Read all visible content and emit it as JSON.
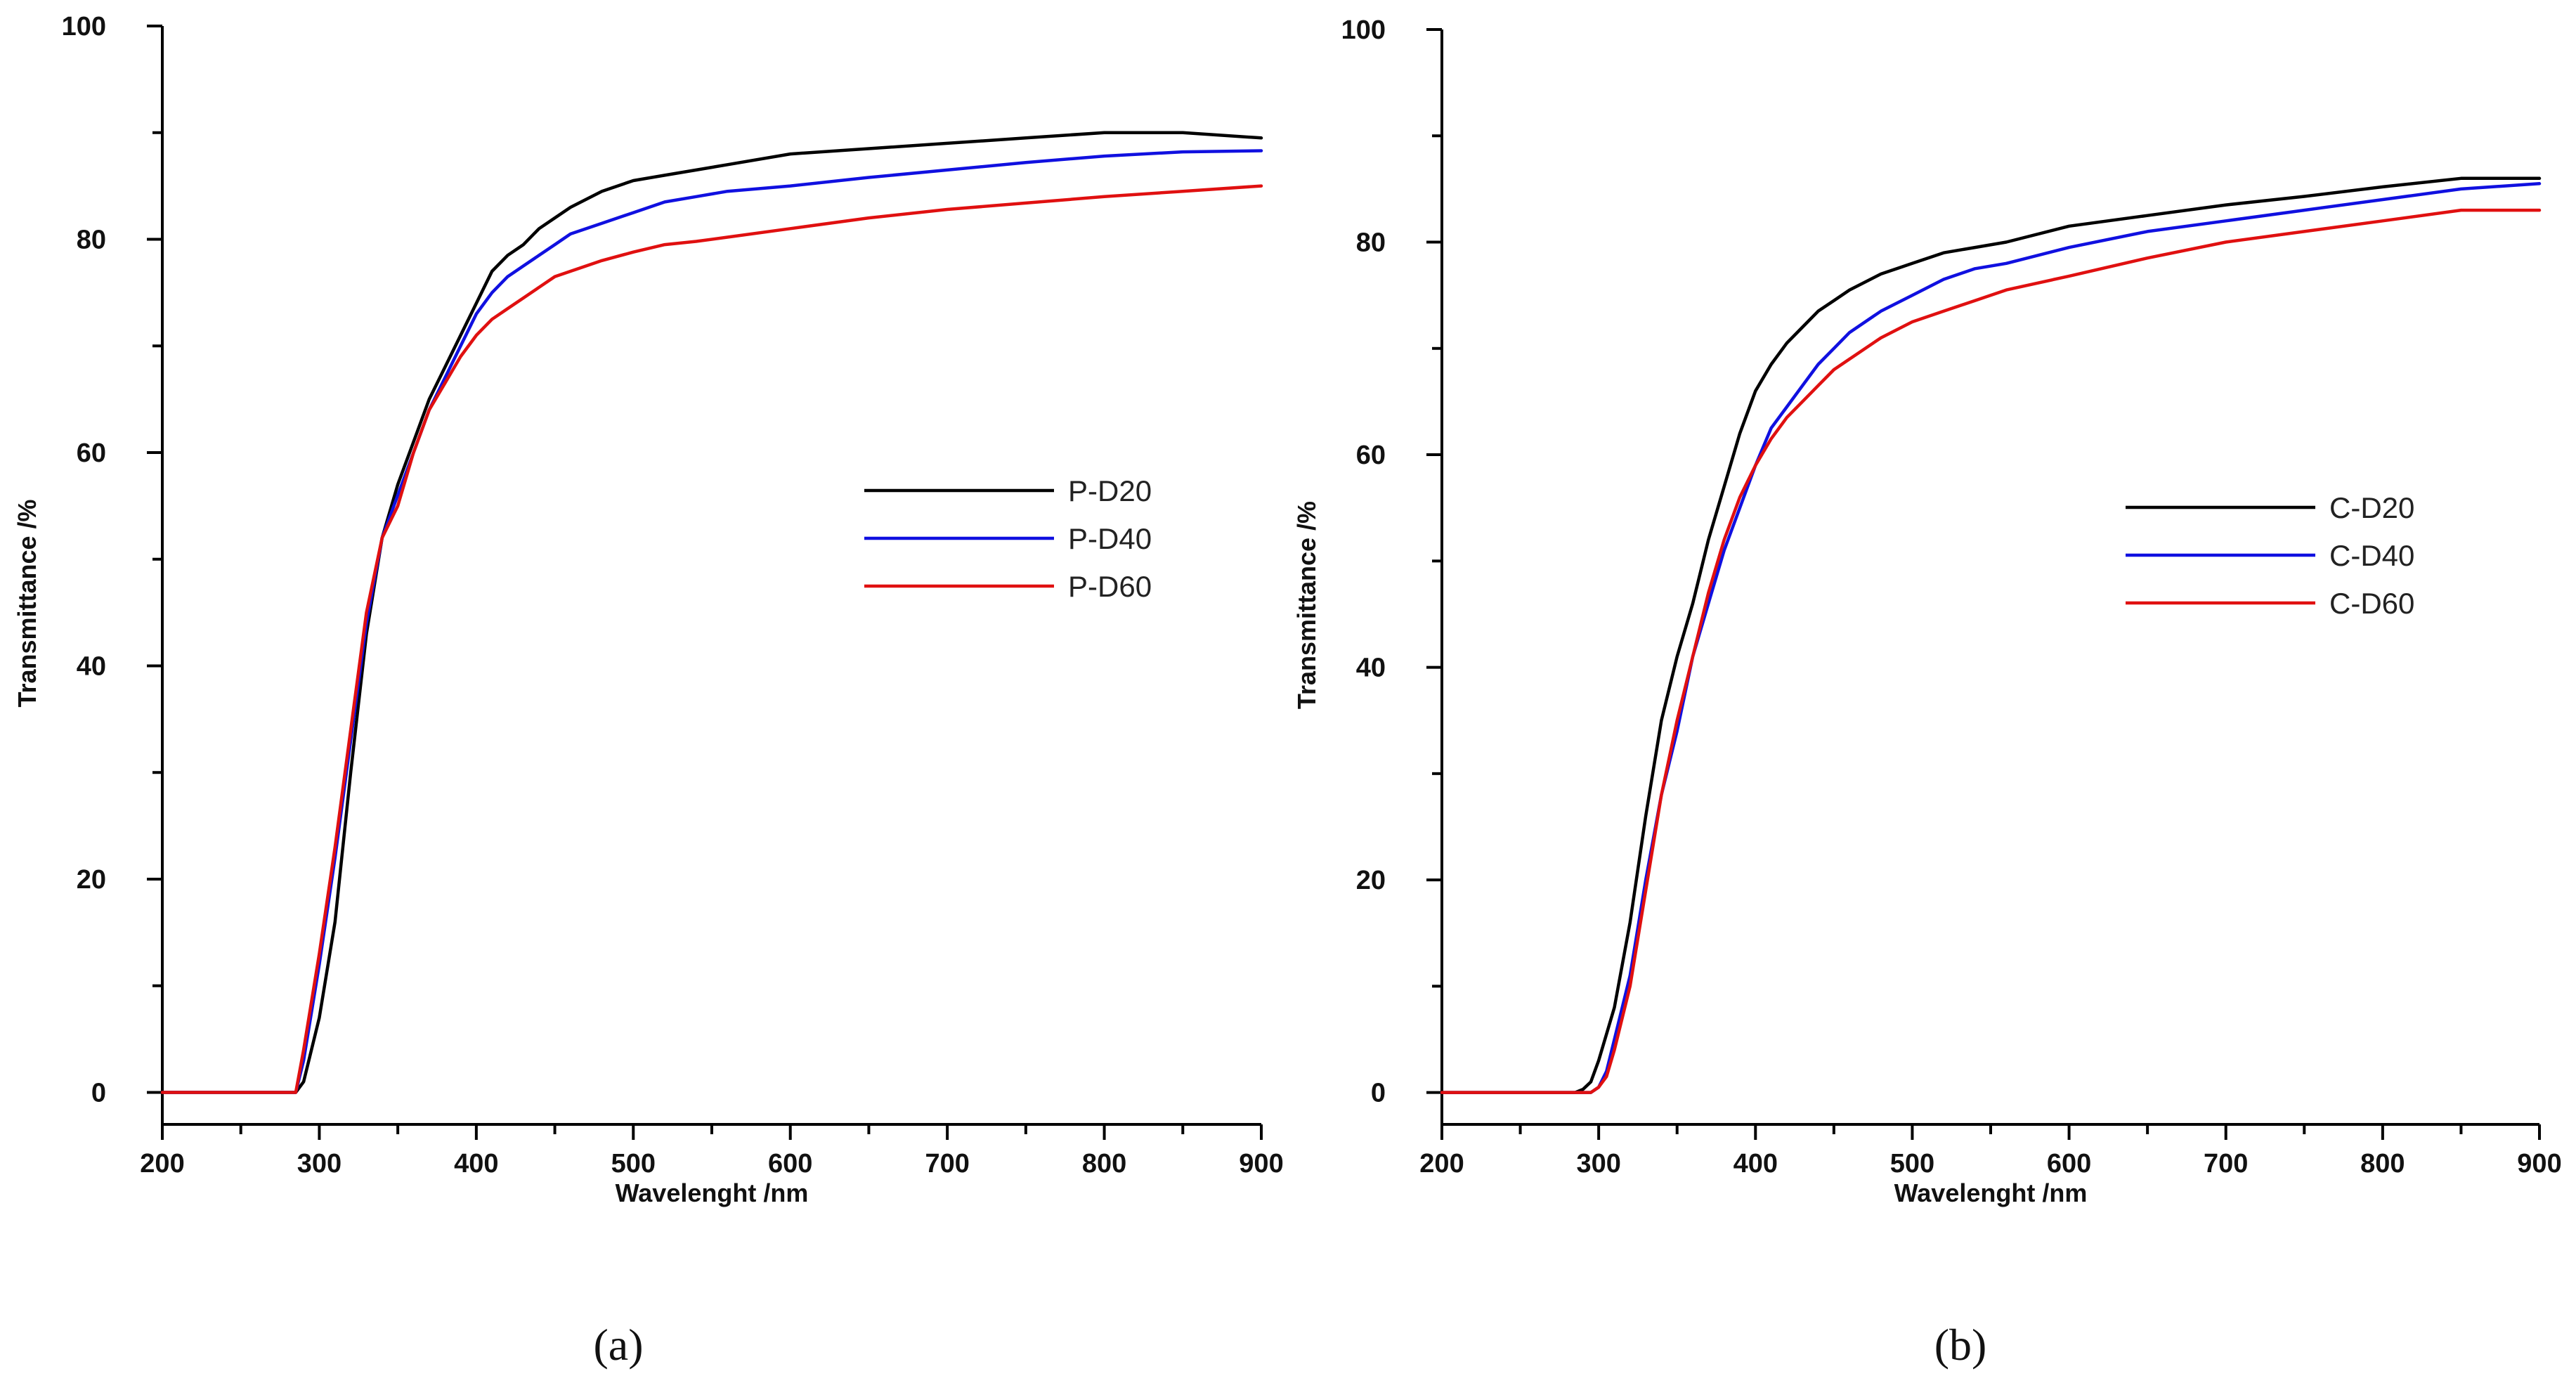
{
  "chart_data": [
    {
      "type": "line",
      "panel_label": "(a)",
      "xlabel": "Wavelenght /nm",
      "ylabel": "Transmittance /%",
      "xlim": [
        200,
        900
      ],
      "ylim": [
        -3,
        100
      ],
      "x_ticks": [
        200,
        300,
        400,
        500,
        600,
        700,
        800,
        900
      ],
      "y_ticks": [
        0,
        20,
        40,
        60,
        80,
        100
      ],
      "legend_position": "right-middle",
      "series": [
        {
          "name": "P-D20",
          "color": "#000000",
          "x": [
            200,
            280,
            285,
            290,
            300,
            310,
            320,
            330,
            340,
            350,
            360,
            370,
            380,
            390,
            400,
            410,
            420,
            430,
            440,
            450,
            460,
            480,
            500,
            520,
            540,
            560,
            600,
            650,
            700,
            750,
            800,
            850,
            900
          ],
          "y": [
            0,
            0,
            0,
            1,
            7,
            16,
            30,
            43,
            52,
            57,
            61,
            65,
            68,
            71,
            74,
            77,
            78.5,
            79.5,
            81,
            82,
            83,
            84.5,
            85.5,
            86,
            86.5,
            87,
            88,
            88.5,
            89,
            89.5,
            90,
            90,
            89.5
          ]
        },
        {
          "name": "P-D40",
          "color": "#1010e0",
          "x": [
            200,
            280,
            285,
            290,
            300,
            310,
            320,
            330,
            340,
            350,
            360,
            370,
            380,
            390,
            400,
            410,
            420,
            430,
            440,
            450,
            460,
            480,
            500,
            520,
            540,
            560,
            600,
            650,
            700,
            750,
            800,
            850,
            900
          ],
          "y": [
            0,
            0,
            0,
            3,
            12,
            22,
            33,
            44,
            52,
            56,
            60,
            64,
            67,
            70,
            73,
            75,
            76.5,
            77.5,
            78.5,
            79.5,
            80.5,
            81.5,
            82.5,
            83.5,
            84,
            84.5,
            85,
            85.8,
            86.5,
            87.2,
            87.8,
            88.2,
            88.3
          ]
        },
        {
          "name": "P-D60",
          "color": "#e01010",
          "x": [
            200,
            280,
            285,
            290,
            300,
            310,
            320,
            330,
            340,
            350,
            360,
            370,
            380,
            390,
            400,
            410,
            420,
            430,
            440,
            450,
            460,
            480,
            500,
            520,
            540,
            560,
            600,
            650,
            700,
            750,
            800,
            850,
            900
          ],
          "y": [
            0,
            0,
            0,
            4,
            13,
            23,
            34,
            45,
            52,
            55,
            60,
            64,
            66.5,
            69,
            71,
            72.5,
            73.5,
            74.5,
            75.5,
            76.5,
            77,
            78,
            78.8,
            79.5,
            79.8,
            80.2,
            81,
            82,
            82.8,
            83.4,
            84,
            84.5,
            85
          ]
        }
      ]
    },
    {
      "type": "line",
      "panel_label": "(b)",
      "xlabel": "Wavelenght /nm",
      "ylabel": "Transmittance /%",
      "xlim": [
        200,
        900
      ],
      "ylim": [
        -3,
        100
      ],
      "x_ticks": [
        200,
        300,
        400,
        500,
        600,
        700,
        800,
        900
      ],
      "y_ticks": [
        0,
        20,
        40,
        60,
        80,
        100
      ],
      "legend_position": "right-middle",
      "series": [
        {
          "name": "C-D20",
          "color": "#000000",
          "x": [
            200,
            285,
            290,
            295,
            300,
            310,
            320,
            330,
            340,
            350,
            360,
            370,
            380,
            390,
            400,
            410,
            420,
            430,
            440,
            450,
            460,
            480,
            500,
            520,
            540,
            560,
            600,
            650,
            700,
            750,
            800,
            850,
            900
          ],
          "y": [
            0,
            0,
            0.3,
            1,
            3,
            8,
            16,
            26,
            35,
            41,
            46,
            52,
            57,
            62,
            66,
            68.5,
            70.5,
            72,
            73.5,
            74.5,
            75.5,
            77,
            78,
            79,
            79.5,
            80,
            81.5,
            82.5,
            83.5,
            84.3,
            85.2,
            86,
            86
          ]
        },
        {
          "name": "C-D40",
          "color": "#1010e0",
          "x": [
            200,
            290,
            295,
            300,
            305,
            310,
            320,
            330,
            340,
            350,
            360,
            370,
            380,
            390,
            400,
            410,
            420,
            430,
            440,
            450,
            460,
            480,
            500,
            520,
            540,
            560,
            600,
            650,
            700,
            750,
            800,
            850,
            900
          ],
          "y": [
            0,
            0,
            0,
            0.5,
            2,
            5,
            11,
            20,
            28,
            34,
            41,
            46,
            51,
            55,
            59,
            62.5,
            64.5,
            66.5,
            68.5,
            70,
            71.5,
            73.5,
            75,
            76.5,
            77.5,
            78,
            79.5,
            81,
            82,
            83,
            84,
            85,
            85.5
          ]
        },
        {
          "name": "C-D60",
          "color": "#e01010",
          "x": [
            200,
            290,
            295,
            300,
            305,
            310,
            320,
            330,
            340,
            350,
            360,
            370,
            380,
            390,
            400,
            410,
            420,
            430,
            440,
            450,
            460,
            480,
            500,
            520,
            540,
            560,
            600,
            650,
            700,
            750,
            800,
            850,
            900
          ],
          "y": [
            0,
            0,
            0,
            0.5,
            1.5,
            4,
            10,
            19,
            28,
            35,
            41,
            47,
            52,
            56,
            59,
            61.5,
            63.5,
            65,
            66.5,
            68,
            69,
            71,
            72.5,
            73.5,
            74.5,
            75.5,
            76.8,
            78.5,
            80,
            81,
            82,
            83,
            83
          ]
        }
      ]
    }
  ]
}
